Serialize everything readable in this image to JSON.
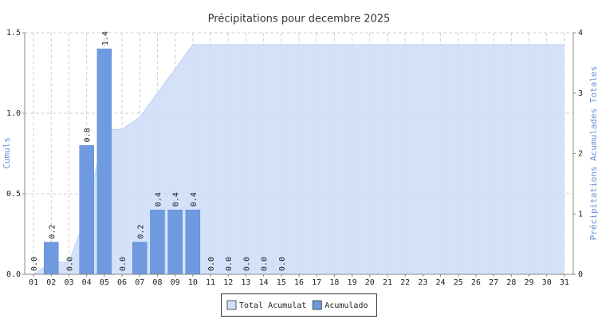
{
  "chart_data": {
    "type": "bar",
    "title": "Précipitations pour decembre 2025",
    "y_label": "Cumuls",
    "y2_label": "Précipitations Acumulades Totales",
    "categories": [
      "01",
      "02",
      "03",
      "04",
      "05",
      "06",
      "07",
      "08",
      "09",
      "10",
      "11",
      "12",
      "13",
      "14",
      "15",
      "16",
      "17",
      "18",
      "19",
      "20",
      "21",
      "22",
      "23",
      "24",
      "25",
      "26",
      "27",
      "28",
      "29",
      "30",
      "31"
    ],
    "series": [
      {
        "name": "Total Acumulat",
        "type": "area",
        "axis": "y2",
        "color": "#d2e0f9",
        "values": [
          0,
          0.2,
          0.2,
          1.0,
          2.4,
          2.4,
          2.6,
          3.0,
          3.4,
          3.8,
          3.8,
          3.8,
          3.8,
          3.8,
          3.8,
          3.8,
          3.8,
          3.8,
          3.8,
          3.8,
          3.8,
          3.8,
          3.8,
          3.8,
          3.8,
          3.8,
          3.8,
          3.8,
          3.8,
          3.8,
          3.8
        ]
      },
      {
        "name": "Acumulado",
        "type": "bar",
        "color": "#6f9ae0",
        "values": [
          0,
          0.2,
          0,
          0.8,
          1.4,
          0,
          0.2,
          0.4,
          0.4,
          0.4,
          0,
          0,
          0,
          0,
          0,
          null,
          null,
          null,
          null,
          null,
          null,
          null,
          null,
          null,
          null,
          null,
          null,
          null,
          null,
          null,
          null
        ],
        "value_labels": [
          "0.0",
          "0.2",
          "0.0",
          "0.8",
          "1.4",
          "0.0",
          "0.2",
          "0.4",
          "0.4",
          "0.4",
          "0.0",
          "0.0",
          "0.0",
          "0.0",
          "0.0",
          null,
          null,
          null,
          null,
          null,
          null,
          null,
          null,
          null,
          null,
          null,
          null,
          null,
          null,
          null,
          null
        ]
      }
    ],
    "ylim": [
      0,
      1.5
    ],
    "yticks": [
      {
        "value": 0,
        "label": "0.0"
      },
      0.5,
      {
        "value": 1,
        "label": "1.0"
      },
      1.5
    ],
    "y2lim": [
      0,
      4
    ],
    "y2ticks": [
      0,
      1,
      2,
      3,
      4
    ],
    "grid": true
  }
}
